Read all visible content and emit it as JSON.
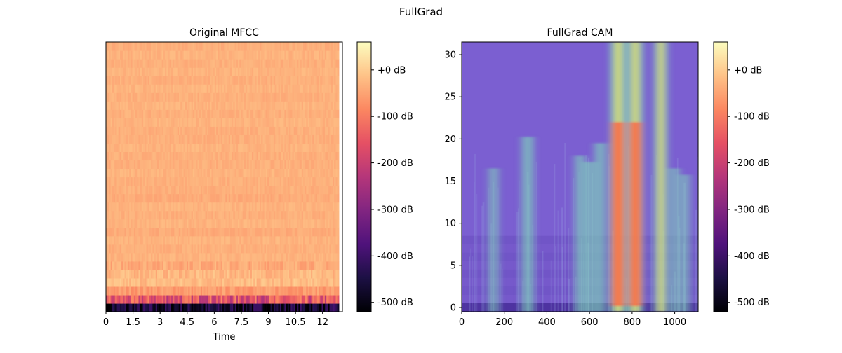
{
  "figure": {
    "title": "FullGrad"
  },
  "colors": {
    "magma": [
      "#000004",
      "#1c1044",
      "#4f127b",
      "#812581",
      "#b5367a",
      "#e55064",
      "#fb8761",
      "#fec287",
      "#fcfdbf"
    ],
    "overlay_base": "#7b5fd1",
    "highlight": [
      "#7fdcb7",
      "#f2e24a",
      "#ff6a3a"
    ]
  },
  "chart_data": [
    {
      "type": "heatmap",
      "title": "Original MFCC",
      "xlabel": "Time",
      "ylabel": "",
      "xlim": [
        0,
        13.1
      ],
      "xticks": [
        0,
        1.5,
        3,
        4.5,
        6,
        7.5,
        9,
        10.5,
        12
      ],
      "xtick_labels": [
        "0",
        "1.5",
        "3",
        "4.5",
        "6",
        "7.5",
        "9",
        "10.5",
        "12"
      ],
      "n_coefficients": 32,
      "value_unit": "dB",
      "value_range": [
        -520,
        60
      ],
      "typical_row_levels": [
        -470,
        -160,
        -60,
        -20,
        -25,
        -40,
        -30,
        -35,
        -30,
        -40,
        -30,
        -35,
        -30,
        -40,
        -35,
        -35,
        -30,
        -35,
        -35,
        -30,
        -35,
        -35,
        -30,
        -35,
        -30,
        -35,
        -30,
        -35,
        -30,
        -35,
        -30,
        -35
      ],
      "colorbar": {
        "ticks": [
          0,
          -100,
          -200,
          -300,
          -400,
          -500
        ],
        "tick_labels": [
          "+0 dB",
          "-100 dB",
          "-200 dB",
          "-300 dB",
          "-400 dB",
          "-500 dB"
        ],
        "colormap": "magma"
      }
    },
    {
      "type": "heatmap",
      "title": "FullGrad CAM",
      "xlabel": "",
      "ylabel": "",
      "xlim": [
        0,
        1110
      ],
      "ylim": [
        -0.5,
        31.5
      ],
      "xticks": [
        0,
        200,
        400,
        600,
        800,
        1000
      ],
      "xtick_labels": [
        "0",
        "200",
        "400",
        "600",
        "800",
        "1000"
      ],
      "yticks": [
        0,
        5,
        10,
        15,
        20,
        25,
        30
      ],
      "ytick_labels": [
        "0",
        "5",
        "10",
        "15",
        "20",
        "25",
        "30"
      ],
      "high_activation_bands": [
        {
          "x": 735,
          "strength": 1.0
        },
        {
          "x": 815,
          "strength": 0.95
        },
        {
          "x": 935,
          "strength": 0.75
        },
        {
          "x": 310,
          "strength": 0.55
        },
        {
          "x": 650,
          "strength": 0.5
        },
        {
          "x": 555,
          "strength": 0.4
        },
        {
          "x": 600,
          "strength": 0.35
        },
        {
          "x": 150,
          "strength": 0.3
        },
        {
          "x": 1000,
          "strength": 0.3
        },
        {
          "x": 1050,
          "strength": 0.25
        }
      ],
      "colorbar": {
        "ticks": [
          0,
          -100,
          -200,
          -300,
          -400,
          -500
        ],
        "tick_labels": [
          "+0 dB",
          "-100 dB",
          "-200 dB",
          "-300 dB",
          "-400 dB",
          "-500 dB"
        ],
        "colormap": "magma"
      }
    }
  ]
}
